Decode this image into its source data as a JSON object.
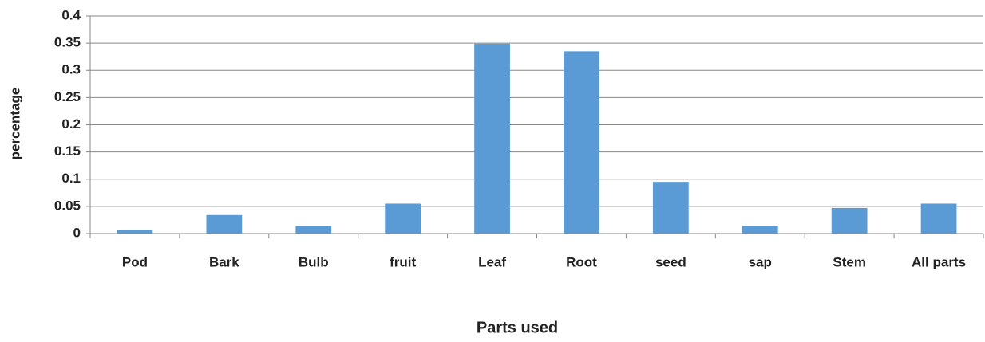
{
  "chart_data": {
    "type": "bar",
    "x_label": "Parts used",
    "y_label": "percentage",
    "categories": [
      "Pod",
      "Bark",
      "Bulb",
      "fruit",
      "Leaf",
      "Root",
      "seed",
      "sap",
      "Stem",
      "All parts"
    ],
    "values": [
      0.007,
      0.034,
      0.014,
      0.055,
      0.349,
      0.335,
      0.095,
      0.014,
      0.047,
      0.055
    ],
    "color": "#5b9bd5",
    "ylim": [
      0,
      0.4
    ],
    "yticks": [
      0,
      0.05,
      0.1,
      0.15,
      0.2,
      0.25,
      0.3,
      0.35,
      0.4
    ],
    "grid": true
  }
}
